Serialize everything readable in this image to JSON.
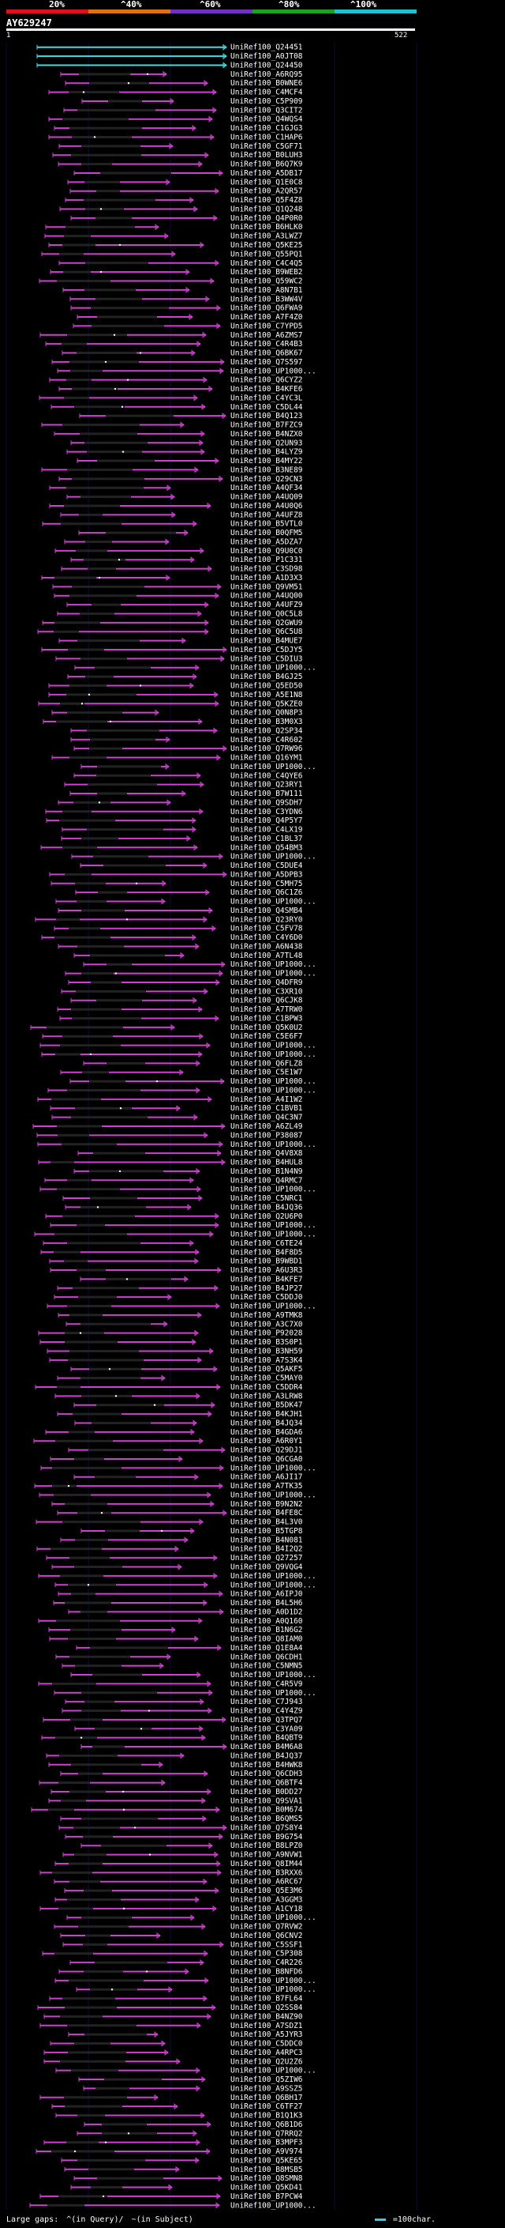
{
  "scale": {
    "labels": [
      "20%",
      "^40%",
      "^60%",
      "^80%",
      "^100%"
    ],
    "colors": [
      "#e01020",
      "#e07010",
      "#7030c0",
      "#20a020",
      "#20c0d0"
    ]
  },
  "query": {
    "id": "AY629247",
    "start": "1",
    "end": "522"
  },
  "colors": {
    "background": "#000000",
    "hit_line": "#d040d0",
    "hit_alt": "#3ce0e0",
    "mismatch_dark": "#222222",
    "gridline": "#0a0a40"
  },
  "hits": [
    {
      "id": "UniRef100_Q24451",
      "color": "cyan"
    },
    {
      "id": "UniRef100_A0JT08",
      "color": "cyan"
    },
    {
      "id": "UniRef100_Q24450",
      "color": "cyan"
    },
    {
      "id": "UniRef100_A6RQ95"
    },
    {
      "id": "UniRef100_B0WNE6"
    },
    {
      "id": "UniRef100_C4MCF4"
    },
    {
      "id": "UniRef100_C5P909"
    },
    {
      "id": "UniRef100_Q3CIT2"
    },
    {
      "id": "UniRef100_Q4WQS4"
    },
    {
      "id": "UniRef100_C1GJG3"
    },
    {
      "id": "UniRef100_C1HAP6"
    },
    {
      "id": "UniRef100_C5GF71"
    },
    {
      "id": "UniRef100_B0LUH3"
    },
    {
      "id": "UniRef100_B6Q7K9"
    },
    {
      "id": "UniRef100_A5DB17"
    },
    {
      "id": "UniRef100_Q1E0C8"
    },
    {
      "id": "UniRef100_A2QR57"
    },
    {
      "id": "UniRef100_Q5F4Z8"
    },
    {
      "id": "UniRef100_Q1Q248"
    },
    {
      "id": "UniRef100_Q4P0R0"
    },
    {
      "id": "UniRef100_B6HLK0"
    },
    {
      "id": "UniRef100_A3LWZ7"
    },
    {
      "id": "UniRef100_Q5KE25"
    },
    {
      "id": "UniRef100_Q55PQ1"
    },
    {
      "id": "UniRef100_C4C4Q5"
    },
    {
      "id": "UniRef100_B9WEB2"
    },
    {
      "id": "UniRef100_Q59WC2"
    },
    {
      "id": "UniRef100_A8N7B1"
    },
    {
      "id": "UniRef100_B3WW4V"
    },
    {
      "id": "UniRef100_Q6FWA9"
    },
    {
      "id": "UniRef100_A7F4Z0"
    },
    {
      "id": "UniRef100_C7YPD5"
    },
    {
      "id": "UniRef100_A6ZMS7"
    },
    {
      "id": "UniRef100_C4R4B3"
    },
    {
      "id": "UniRef100_Q6BK67"
    },
    {
      "id": "UniRef100_Q7S597"
    },
    {
      "id": "UniRef100_UP1000..."
    },
    {
      "id": "UniRef100_Q6CYZ2"
    },
    {
      "id": "UniRef100_B4KFE6"
    },
    {
      "id": "UniRef100_C4YC3L"
    },
    {
      "id": "UniRef100_C5DL44"
    },
    {
      "id": "UniRef100_B4Q123"
    },
    {
      "id": "UniRef100_B7FZC9"
    },
    {
      "id": "UniRef100_B4NZX0"
    },
    {
      "id": "UniRef100_Q2UN93"
    },
    {
      "id": "UniRef100_B4LYZ9"
    },
    {
      "id": "UniRef100_B4MY22"
    },
    {
      "id": "UniRef100_B3NE89"
    },
    {
      "id": "UniRef100_Q29CN3"
    },
    {
      "id": "UniRef100_A4QF34"
    },
    {
      "id": "UniRef100_A4UQ09"
    },
    {
      "id": "UniRef100_A4U0Q6"
    },
    {
      "id": "UniRef100_A4UFZ8"
    },
    {
      "id": "UniRef100_B5VTL0"
    },
    {
      "id": "UniRef100_B0QFM5"
    },
    {
      "id": "UniRef100_A5DZA7"
    },
    {
      "id": "UniRef100_Q9U0C0"
    },
    {
      "id": "UniRef100_P1C331"
    },
    {
      "id": "UniRef100_C3SD98"
    },
    {
      "id": "UniRef100_A1D3X3"
    },
    {
      "id": "UniRef100_Q9VM51"
    },
    {
      "id": "UniRef100_A4UQ00"
    },
    {
      "id": "UniRef100_A4UFZ9"
    },
    {
      "id": "UniRef100_Q0C5L8"
    },
    {
      "id": "UniRef100_Q2GWU9"
    },
    {
      "id": "UniRef100_Q6C5U8"
    },
    {
      "id": "UniRef100_B4MUE7"
    },
    {
      "id": "UniRef100_C5DJY5"
    },
    {
      "id": "UniRef100_C5DIU3"
    },
    {
      "id": "UniRef100_UP1000..."
    },
    {
      "id": "UniRef100_B4GJ25"
    },
    {
      "id": "UniRef100_Q5ED50"
    },
    {
      "id": "UniRef100_A5E1N8"
    },
    {
      "id": "UniRef100_Q5KZE0"
    },
    {
      "id": "UniRef100_Q0N8P3"
    },
    {
      "id": "UniRef100_B3M0X3"
    },
    {
      "id": "UniRef100_Q2SP34"
    },
    {
      "id": "UniRef100_C4R602"
    },
    {
      "id": "UniRef100_Q7RW96"
    },
    {
      "id": "UniRef100_Q16YM1"
    },
    {
      "id": "UniRef100_UP1000..."
    },
    {
      "id": "UniRef100_C4QYE6"
    },
    {
      "id": "UniRef100_Q23RY1"
    },
    {
      "id": "UniRef100_B7W111"
    },
    {
      "id": "UniRef100_Q9SDH7"
    },
    {
      "id": "UniRef100_C3YDN6"
    },
    {
      "id": "UniRef100_Q4P5Y7"
    },
    {
      "id": "UniRef100_C4LX19"
    },
    {
      "id": "UniRef100_C1BL37"
    },
    {
      "id": "UniRef100_Q54BM3"
    },
    {
      "id": "UniRef100_UP1000..."
    },
    {
      "id": "UniRef100_C5DUE4"
    },
    {
      "id": "UniRef100_A5DPB3"
    },
    {
      "id": "UniRef100_C5MH75"
    },
    {
      "id": "UniRef100_Q6C1Z6"
    },
    {
      "id": "UniRef100_UP1000..."
    },
    {
      "id": "UniRef100_Q4SMB4"
    },
    {
      "id": "UniRef100_Q23RY0"
    },
    {
      "id": "UniRef100_C5FV78"
    },
    {
      "id": "UniRef100_C4Y6D0"
    },
    {
      "id": "UniRef100_A6N438"
    },
    {
      "id": "UniRef100_A7TL48"
    },
    {
      "id": "UniRef100_UP1000..."
    },
    {
      "id": "UniRef100_UP1000..."
    },
    {
      "id": "UniRef100_Q4DFR9"
    },
    {
      "id": "UniRef100_C3XR10"
    },
    {
      "id": "UniRef100_Q6CJK8"
    },
    {
      "id": "UniRef100_A7TRW0"
    },
    {
      "id": "UniRef100_C1BPW3"
    },
    {
      "id": "UniRef100_Q5K0U2"
    },
    {
      "id": "UniRef100_C5E6F7"
    },
    {
      "id": "UniRef100_UP1000..."
    },
    {
      "id": "UniRef100_UP1000..."
    },
    {
      "id": "UniRef100_Q6FLZ8"
    },
    {
      "id": "UniRef100_C5E1W7"
    },
    {
      "id": "UniRef100_UP1000..."
    },
    {
      "id": "UniRef100_UP1000..."
    },
    {
      "id": "UniRef100_A4I1W2"
    },
    {
      "id": "UniRef100_C1BVB1"
    },
    {
      "id": "UniRef100_Q4C3N7"
    },
    {
      "id": "UniRef100_A6ZL49"
    },
    {
      "id": "UniRef100_P38087"
    },
    {
      "id": "UniRef100_UP1000..."
    },
    {
      "id": "UniRef100_Q4V8X8"
    },
    {
      "id": "UniRef100_B4HUL8"
    },
    {
      "id": "UniRef100_B1N4N9"
    },
    {
      "id": "UniRef100_Q4RMC7"
    },
    {
      "id": "UniRef100_UP1000..."
    },
    {
      "id": "UniRef100_C5NRC1"
    },
    {
      "id": "UniRef100_B4JQ36"
    },
    {
      "id": "UniRef100_Q2U6P0"
    },
    {
      "id": "UniRef100_UP1000..."
    },
    {
      "id": "UniRef100_UP1000..."
    },
    {
      "id": "UniRef100_C6TE24"
    },
    {
      "id": "UniRef100_B4F8D5"
    },
    {
      "id": "UniRef100_B9WBD1"
    },
    {
      "id": "UniRef100_A6U3R3"
    },
    {
      "id": "UniRef100_B4KFE7"
    },
    {
      "id": "UniRef100_B4JP27"
    },
    {
      "id": "UniRef100_C5DDJ0"
    },
    {
      "id": "UniRef100_UP1000..."
    },
    {
      "id": "UniRef100_A9TMK8"
    },
    {
      "id": "UniRef100_A3C7X0"
    },
    {
      "id": "UniRef100_P92028"
    },
    {
      "id": "UniRef100_B3S0P1"
    },
    {
      "id": "UniRef100_B3NH59"
    },
    {
      "id": "UniRef100_A7S3K4"
    },
    {
      "id": "UniRef100_Q5AKF5"
    },
    {
      "id": "UniRef100_C5MAY0"
    },
    {
      "id": "UniRef100_C5DDR4"
    },
    {
      "id": "UniRef100_A3LRW8"
    },
    {
      "id": "UniRef100_B5DK47"
    },
    {
      "id": "UniRef100_B4KJH1"
    },
    {
      "id": "UniRef100_B4JQ34"
    },
    {
      "id": "UniRef100_B4GDA6"
    },
    {
      "id": "UniRef100_A6R0Y1"
    },
    {
      "id": "UniRef100_Q29DJ1"
    },
    {
      "id": "UniRef100_Q6CGA0"
    },
    {
      "id": "UniRef100_UP1000..."
    },
    {
      "id": "UniRef100_A6JI17"
    },
    {
      "id": "UniRef100_A7TK35"
    },
    {
      "id": "UniRef100_UP1000..."
    },
    {
      "id": "UniRef100_B9N2N2"
    },
    {
      "id": "UniRef100_B4FE8C"
    },
    {
      "id": "UniRef100_B4L3V0"
    },
    {
      "id": "UniRef100_B5TGP8"
    },
    {
      "id": "UniRef100_B4N081"
    },
    {
      "id": "UniRef100_B4I2Q2"
    },
    {
      "id": "UniRef100_Q27257"
    },
    {
      "id": "UniRef100_Q9VQG4"
    },
    {
      "id": "UniRef100_UP1000..."
    },
    {
      "id": "UniRef100_UP1000..."
    },
    {
      "id": "UniRef100_A6IPJ0"
    },
    {
      "id": "UniRef100_B4L5H6"
    },
    {
      "id": "UniRef100_A0D1D2"
    },
    {
      "id": "UniRef100_A0Q160"
    },
    {
      "id": "UniRef100_B1N6G2"
    },
    {
      "id": "UniRef100_Q8IAM0"
    },
    {
      "id": "UniRef100_Q1E8A4"
    },
    {
      "id": "UniRef100_Q6CDH1"
    },
    {
      "id": "UniRef100_C5NMN5"
    },
    {
      "id": "UniRef100_UP1000..."
    },
    {
      "id": "UniRef100_C4R5V9"
    },
    {
      "id": "UniRef100_UP1000..."
    },
    {
      "id": "UniRef100_C7J943"
    },
    {
      "id": "UniRef100_C4Y4Z9"
    },
    {
      "id": "UniRef100_Q3TPQ7"
    },
    {
      "id": "UniRef100_C3YA09"
    },
    {
      "id": "UniRef100_B4QBT9"
    },
    {
      "id": "UniRef100_B4M6A8"
    },
    {
      "id": "UniRef100_B4JQ37"
    },
    {
      "id": "UniRef100_B4HWK8"
    },
    {
      "id": "UniRef100_Q6CDH3"
    },
    {
      "id": "UniRef100_Q6BTF4"
    },
    {
      "id": "UniRef100_B0DD27"
    },
    {
      "id": "UniRef100_Q9SVA1"
    },
    {
      "id": "UniRef100_B0M674"
    },
    {
      "id": "UniRef100_B6QMS5"
    },
    {
      "id": "UniRef100_Q7S8Y4"
    },
    {
      "id": "UniRef100_B9G754"
    },
    {
      "id": "UniRef100_B8LPZ0"
    },
    {
      "id": "UniRef100_A9NVW1"
    },
    {
      "id": "UniRef100_Q8IM44"
    },
    {
      "id": "UniRef100_B3RXX6"
    },
    {
      "id": "UniRef100_A6RC67"
    },
    {
      "id": "UniRef100_Q5E3M6"
    },
    {
      "id": "UniRef100_A3GGM3"
    },
    {
      "id": "UniRef100_A1CY18"
    },
    {
      "id": "UniRef100_UP1000..."
    },
    {
      "id": "UniRef100_Q7RVW2"
    },
    {
      "id": "UniRef100_Q6CNV2"
    },
    {
      "id": "UniRef100_C5SSF1"
    },
    {
      "id": "UniRef100_C5P308"
    },
    {
      "id": "UniRef100_C4R226"
    },
    {
      "id": "UniRef100_B8NFD6"
    },
    {
      "id": "UniRef100_UP1000..."
    },
    {
      "id": "UniRef100_UP1000..."
    },
    {
      "id": "UniRef100_B7FL64"
    },
    {
      "id": "UniRef100_Q2SS84"
    },
    {
      "id": "UniRef100_B4NZ90"
    },
    {
      "id": "UniRef100_A7SDZ1"
    },
    {
      "id": "UniRef100_A5JYR3"
    },
    {
      "id": "UniRef100_C5DDC0"
    },
    {
      "id": "UniRef100_A4RPC3"
    },
    {
      "id": "UniRef100_Q2U2Z6"
    },
    {
      "id": "UniRef100_UP1000..."
    },
    {
      "id": "UniRef100_Q5ZIW6"
    },
    {
      "id": "UniRef100_A9SSZ5"
    },
    {
      "id": "UniRef100_Q6BH17"
    },
    {
      "id": "UniRef100_C6TF27"
    },
    {
      "id": "UniRef100_B1Q1K3"
    },
    {
      "id": "UniRef100_Q6B1D6"
    },
    {
      "id": "UniRef100_Q7RRQ2"
    },
    {
      "id": "UniRef100_B3MPF3"
    },
    {
      "id": "UniRef100_A9V974"
    },
    {
      "id": "UniRef100_Q5KE65"
    },
    {
      "id": "UniRef100_B8MSB5"
    },
    {
      "id": "UniRef100_Q8SMN8"
    },
    {
      "id": "UniRef100_Q5KD41"
    },
    {
      "id": "UniRef100_B7PCW4"
    },
    {
      "id": "UniRef100_UP1000..."
    }
  ],
  "legend": {
    "large_gaps": "Large gaps:",
    "in_query": "^(in Query)/",
    "in_subject": "~(in Subject)",
    "unit": "=100char."
  }
}
